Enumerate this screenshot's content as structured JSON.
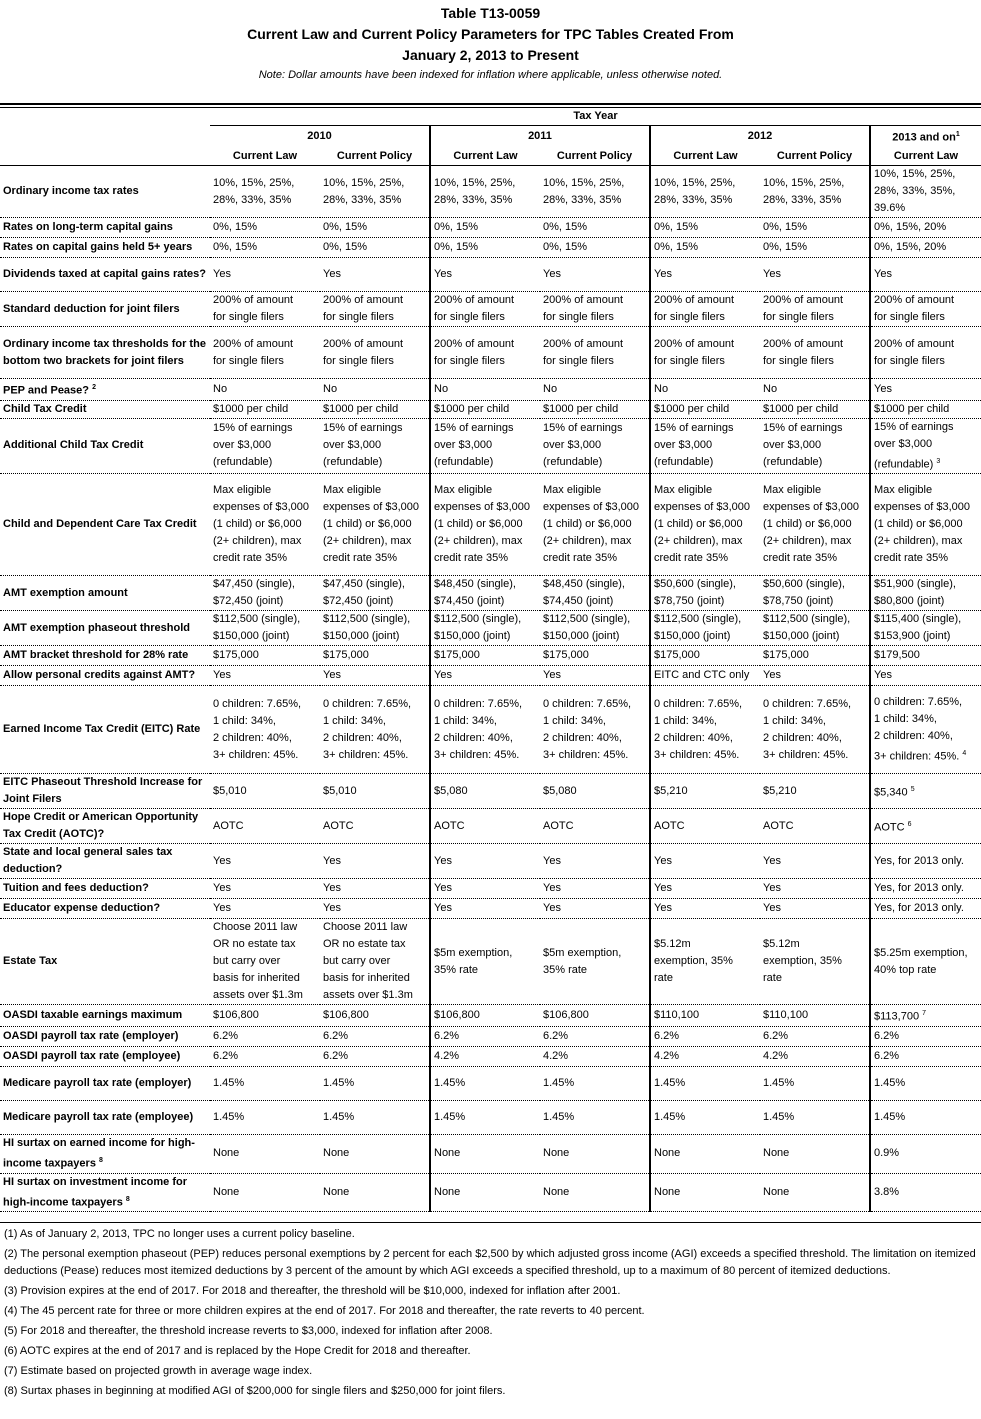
{
  "header": {
    "title": "Table T13-0059",
    "subtitle1": "Current Law and Current Policy Parameters for TPC Tables Created From",
    "subtitle2": "January 2, 2013 to Present",
    "note": "Note: Dollar amounts have been indexed for inflation where applicable, unless otherwise noted."
  },
  "columns": {
    "tax_year": "Tax Year",
    "years": [
      "2010",
      "2011",
      "2012",
      "2013 and on"
    ],
    "year_sup": "1",
    "sub": [
      "Current Law",
      "Current Policy",
      "Current Law",
      "Current Policy",
      "Current Law",
      "Current Policy",
      "Current Law"
    ]
  },
  "rows": [
    {
      "label": "Ordinary income tax rates",
      "cells": [
        "10%, 15%, 25%,\n28%, 33%, 35%",
        "10%, 15%, 25%,\n28%, 33%, 35%",
        "10%, 15%, 25%,\n28%, 33%, 35%",
        "10%, 15%, 25%,\n28%, 33%, 35%",
        "10%, 15%, 25%,\n28%, 33%, 35%",
        "10%, 15%, 25%,\n28%, 33%, 35%",
        "10%, 15%, 25%,\n28%, 33%, 35%,\n39.6%"
      ]
    },
    {
      "label": "Rates on long-term capital gains",
      "cells": [
        "0%, 15%",
        "0%, 15%",
        "0%, 15%",
        "0%, 15%",
        "0%, 15%",
        "0%, 15%",
        "0%, 15%, 20%"
      ]
    },
    {
      "label": "Rates on capital gains held 5+ years",
      "cells": [
        "0%, 15%",
        "0%, 15%",
        "0%, 15%",
        "0%, 15%",
        "0%, 15%",
        "0%, 15%",
        "0%, 15%, 20%"
      ]
    },
    {
      "label": "Dividends taxed at capital gains rates?",
      "cells": [
        "Yes",
        "Yes",
        "Yes",
        "Yes",
        "Yes",
        "Yes",
        "Yes"
      ]
    },
    {
      "label": "Standard deduction for joint filers",
      "cells": [
        "200% of amount\nfor single filers",
        "200% of amount\nfor single filers",
        "200% of amount\nfor single filers",
        "200% of amount\nfor single filers",
        "200% of amount\nfor single filers",
        "200% of amount\nfor single filers",
        "200% of amount\nfor single filers"
      ]
    },
    {
      "label": "Ordinary income tax thresholds for the bottom two brackets for joint filers",
      "cells": [
        "200% of amount\nfor single filers",
        "200% of amount\nfor single filers",
        "200% of amount\nfor single filers",
        "200% of amount\nfor single filers",
        "200% of amount\nfor single filers",
        "200% of amount\nfor single filers",
        "200% of amount\nfor single filers"
      ]
    },
    {
      "label": "PEP and Pease?",
      "label_sup": "2",
      "cells": [
        "No",
        "No",
        "No",
        "No",
        "No",
        "No",
        "Yes"
      ]
    },
    {
      "label": "Child Tax Credit",
      "cells": [
        "$1000 per child",
        "$1000 per child",
        "$1000 per child",
        "$1000 per child",
        "$1000 per child",
        "$1000 per child",
        "$1000 per child"
      ]
    },
    {
      "label": "Additional Child Tax Credit",
      "cells": [
        "15% of earnings\nover $3,000\n(refundable)",
        "15% of earnings\nover $3,000\n(refundable)",
        "15% of earnings\nover $3,000\n(refundable)",
        "15% of earnings\nover $3,000\n(refundable)",
        "15% of earnings\nover $3,000\n(refundable)",
        "15% of earnings\nover $3,000\n(refundable)",
        [
          "15% of earnings\nover $3,000\n(refundable)",
          "3"
        ]
      ]
    },
    {
      "label": "Child and Dependent Care Tax Credit",
      "cells": [
        "Max eligible\nexpenses of $3,000\n(1 child) or $6,000\n(2+ children), max\ncredit rate 35%",
        "Max eligible\nexpenses of $3,000\n(1 child) or $6,000\n(2+ children), max\ncredit rate 35%",
        "Max eligible\nexpenses of $3,000\n(1 child) or $6,000\n(2+ children), max\ncredit rate 35%",
        "Max eligible\nexpenses of $3,000\n(1 child) or $6,000\n(2+ children), max\ncredit rate 35%",
        "Max eligible\nexpenses of $3,000\n(1 child) or $6,000\n(2+ children), max\ncredit rate 35%",
        "Max eligible\nexpenses of $3,000\n(1 child) or $6,000\n(2+ children), max\ncredit rate 35%",
        "Max eligible\nexpenses of $3,000\n(1 child) or $6,000\n(2+ children), max\ncredit rate 35%"
      ]
    },
    {
      "label": "AMT exemption amount",
      "cells": [
        "$47,450 (single),\n$72,450 (joint)",
        "$47,450 (single),\n$72,450 (joint)",
        "$48,450 (single),\n$74,450 (joint)",
        "$48,450 (single),\n$74,450 (joint)",
        "$50,600 (single),\n$78,750 (joint)",
        "$50,600 (single),\n$78,750 (joint)",
        "$51,900 (single),\n$80,800 (joint)"
      ]
    },
    {
      "label": "AMT exemption phaseout threshold",
      "cells": [
        "$112,500 (single),\n$150,000 (joint)",
        "$112,500 (single),\n$150,000 (joint)",
        "$112,500 (single),\n$150,000 (joint)",
        "$112,500 (single),\n$150,000 (joint)",
        "$112,500 (single),\n$150,000 (joint)",
        "$112,500 (single),\n$150,000 (joint)",
        "$115,400 (single),\n$153,900 (joint)"
      ]
    },
    {
      "label": "AMT bracket threshold for 28% rate",
      "cells": [
        "$175,000",
        "$175,000",
        "$175,000",
        "$175,000",
        "$175,000",
        "$175,000",
        "$179,500"
      ]
    },
    {
      "label": "Allow personal credits against AMT?",
      "cells": [
        "Yes",
        "Yes",
        "Yes",
        "Yes",
        "EITC and CTC only",
        "Yes",
        "Yes"
      ]
    },
    {
      "label": "Earned Income Tax Credit (EITC) Rate",
      "cells": [
        "0 children: 7.65%,\n1 child:        34%,\n2 children: 40%,\n3+ children: 45%.",
        "0 children: 7.65%,\n1 child:        34%,\n2 children: 40%,\n3+ children: 45%.",
        "0 children: 7.65%,\n1 child:        34%,\n2 children: 40%,\n3+ children: 45%.",
        "0 children: 7.65%,\n1 child:        34%,\n2 children: 40%,\n3+ children: 45%.",
        "0 children: 7.65%,\n1 child:        34%,\n2 children: 40%,\n3+ children: 45%.",
        "0 children: 7.65%,\n1 child:        34%,\n2 children: 40%,\n3+ children: 45%.",
        [
          "0 children: 7.65%,\n1 child:        34%,\n2 children: 40%,\n3+ children: 45%.",
          "4"
        ]
      ]
    },
    {
      "label": "EITC Phaseout Threshold Increase for Joint Filers",
      "cells": [
        "$5,010",
        "$5,010",
        "$5,080",
        "$5,080",
        "$5,210",
        "$5,210",
        [
          "$5,340",
          "5"
        ]
      ]
    },
    {
      "label": "Hope Credit or American Opportunity Tax Credit (AOTC)?",
      "cells": [
        "AOTC",
        "AOTC",
        "AOTC",
        "AOTC",
        "AOTC",
        "AOTC",
        [
          "AOTC",
          "6"
        ]
      ]
    },
    {
      "label": "State and local general sales tax deduction?",
      "cells": [
        "Yes",
        "Yes",
        "Yes",
        "Yes",
        "Yes",
        "Yes",
        "Yes, for 2013 only."
      ]
    },
    {
      "label": "Tuition and fees deduction?",
      "cells": [
        "Yes",
        "Yes",
        "Yes",
        "Yes",
        "Yes",
        "Yes",
        "Yes, for 2013 only."
      ]
    },
    {
      "label": "Educator expense deduction?",
      "cells": [
        "Yes",
        "Yes",
        "Yes",
        "Yes",
        "Yes",
        "Yes",
        "Yes, for 2013 only."
      ]
    },
    {
      "label": "Estate Tax",
      "cells": [
        "Choose 2011 law\nOR no estate tax\nbut carry over\nbasis for inherited\nassets over $1.3m",
        "Choose 2011 law\nOR no estate tax\nbut carry over\nbasis for inherited\nassets over $1.3m",
        "$5m exemption,\n35% rate",
        "$5m exemption,\n35% rate",
        "$5.12m\nexemption, 35%\nrate",
        "$5.12m\nexemption, 35%\nrate",
        "$5.25m exemption,\n40% top rate"
      ]
    },
    {
      "label": "OASDI taxable earnings maximum",
      "cells": [
        "$106,800",
        "$106,800",
        "$106,800",
        "$106,800",
        "$110,100",
        "$110,100",
        [
          "$113,700",
          "7"
        ]
      ]
    },
    {
      "label": "OASDI payroll tax rate (employer)",
      "cells": [
        "6.2%",
        "6.2%",
        "6.2%",
        "6.2%",
        "6.2%",
        "6.2%",
        "6.2%"
      ]
    },
    {
      "label": "OASDI payroll tax rate (employee)",
      "cells": [
        "6.2%",
        "6.2%",
        "4.2%",
        "4.2%",
        "4.2%",
        "4.2%",
        "6.2%"
      ]
    },
    {
      "label": "Medicare payroll tax rate (employer)",
      "cells": [
        "1.45%",
        "1.45%",
        "1.45%",
        "1.45%",
        "1.45%",
        "1.45%",
        "1.45%"
      ]
    },
    {
      "label": "Medicare payroll tax rate (employee)",
      "cells": [
        "1.45%",
        "1.45%",
        "1.45%",
        "1.45%",
        "1.45%",
        "1.45%",
        "1.45%"
      ]
    },
    {
      "label": "HI surtax on earned income for high-income taxpayers",
      "label_sup": "8",
      "cells": [
        "None",
        "None",
        "None",
        "None",
        "None",
        "None",
        "0.9%"
      ]
    },
    {
      "label": "HI surtax on investment income for high-income taxpayers",
      "label_sup": "8",
      "cells": [
        "None",
        "None",
        "None",
        "None",
        "None",
        "None",
        "3.8%"
      ]
    }
  ],
  "footnotes": [
    "(1) As of January 2, 2013, TPC no longer uses a current policy baseline.",
    "(2) The personal exemption phaseout (PEP) reduces personal exemptions by 2 percent for each $2,500 by which adjusted gross income (AGI) exceeds a specified threshold. The limitation on itemized deductions (Pease) reduces most itemized deductions by 3 percent of the amount by which AGI exceeds  a specified threshold, up to a maximum of 80 percent of itemized deductions.",
    "(3) Provision expires at the end of 2017. For 2018 and thereafter, the threshold will be $10,000, indexed for inflation after 2001.",
    "(4) The 45 percent rate for three or more children expires at the end of 2017. For 2018 and thereafter, the rate reverts to 40 percent.",
    "(5) For 2018 and thereafter, the threshold increase reverts to $3,000, indexed for inflation after 2008.",
    "(6) AOTC expires at the end of 2017 and is replaced by the Hope Credit for 2018 and thereafter.",
    "(7) Estimate based on projected growth in average wage index.",
    "(8) Surtax phases in beginning at modified AGI of $200,000 for single filers and $250,000 for joint filers."
  ]
}
